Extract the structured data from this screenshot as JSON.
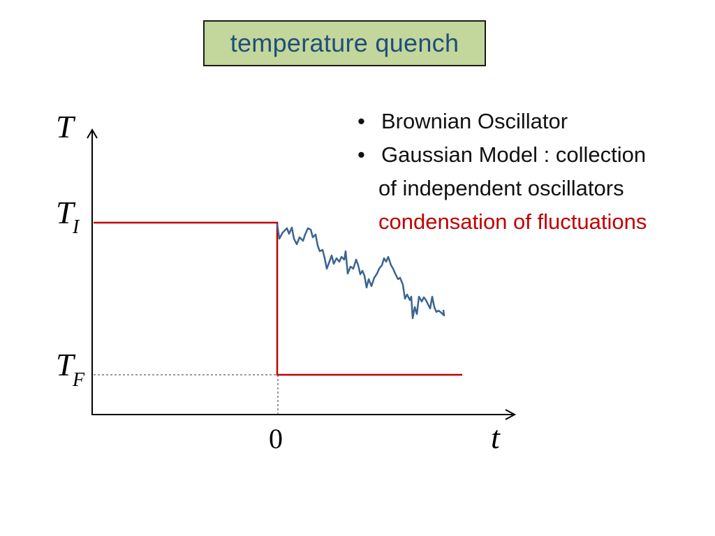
{
  "title": "temperature quench",
  "bullets": [
    {
      "bullet": "•",
      "text": "Brownian Oscillator"
    },
    {
      "bullet": "•",
      "text": "Gaussian Model : collection"
    }
  ],
  "bullet_continuation": "of independent oscillators",
  "highlight": "condensation of fluctuations",
  "diagram": {
    "y_axis_label": "T",
    "x_axis_label": "t",
    "ti_label_main": "T",
    "ti_label_sub": "I",
    "tf_label_main": "T",
    "tf_label_sub": "F",
    "origin_label": "0"
  },
  "colors": {
    "title_bg": "#c3d69b",
    "title_text": "#1f4e79",
    "step_line": "#c00000",
    "fluctuation_line": "#3a6491",
    "highlight_text": "#c00000"
  }
}
